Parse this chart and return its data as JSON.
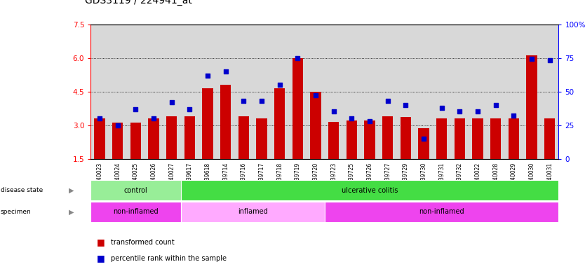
{
  "title": "GDS3119 / 224941_at",
  "samples": [
    "GSM240023",
    "GSM240024",
    "GSM240025",
    "GSM240026",
    "GSM240027",
    "GSM239617",
    "GSM239618",
    "GSM239714",
    "GSM239716",
    "GSM239717",
    "GSM239718",
    "GSM239719",
    "GSM239720",
    "GSM239723",
    "GSM239725",
    "GSM239726",
    "GSM239727",
    "GSM239729",
    "GSM239730",
    "GSM239731",
    "GSM239732",
    "GSM240022",
    "GSM240028",
    "GSM240029",
    "GSM240030",
    "GSM240031"
  ],
  "red_values": [
    3.3,
    3.1,
    3.1,
    3.3,
    3.4,
    3.4,
    4.65,
    4.8,
    3.4,
    3.3,
    4.65,
    6.0,
    4.5,
    3.15,
    3.2,
    3.2,
    3.4,
    3.35,
    2.85,
    3.3,
    3.3,
    3.3,
    3.3,
    3.3,
    6.1,
    3.3
  ],
  "blue_values": [
    30,
    25,
    37,
    30,
    42,
    37,
    62,
    65,
    43,
    43,
    55,
    75,
    47,
    35,
    30,
    28,
    43,
    40,
    15,
    38,
    35,
    35,
    40,
    32,
    74,
    73
  ],
  "disease_state_groups": [
    {
      "label": "control",
      "start": 0,
      "end": 5,
      "color": "#98EE98"
    },
    {
      "label": "ulcerative colitis",
      "start": 5,
      "end": 26,
      "color": "#44DD44"
    }
  ],
  "specimen_groups": [
    {
      "label": "non-inflamed",
      "start": 0,
      "end": 5,
      "color": "#EE44EE"
    },
    {
      "label": "inflamed",
      "start": 5,
      "end": 13,
      "color": "#FFAAFF"
    },
    {
      "label": "non-inflamed",
      "start": 13,
      "end": 26,
      "color": "#EE44EE"
    }
  ],
  "ylim_left": [
    1.5,
    7.5
  ],
  "yticks_left": [
    1.5,
    3.0,
    4.5,
    6.0,
    7.5
  ],
  "ylim_right": [
    0,
    100
  ],
  "yticks_right": [
    0,
    25,
    50,
    75,
    100
  ],
  "bar_color": "#CC0000",
  "dot_color": "#0000CC",
  "bg_color": "#D8D8D8",
  "grid_color": "#000000",
  "title_fontsize": 10,
  "tick_fontsize": 7.5
}
